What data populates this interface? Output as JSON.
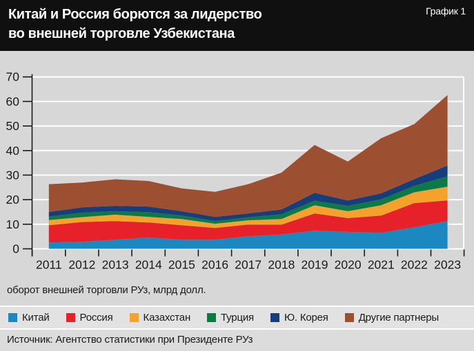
{
  "header": {
    "title_line1": "Китай и Россия борются за лидерство",
    "title_line2": "во внешней торговле Узбекистана",
    "chart_label": "График 1"
  },
  "caption": "оборот внешней торговли РУз, млрд долл.",
  "source": "Источник: Агентство статистики при Президенте РУз",
  "colors": {
    "header_bg": "#101010",
    "page_bg": "#d7d7d7",
    "gridline": "#ffffff",
    "axis": "#1a1a1a",
    "china_blue": "#1b89c0",
    "russia_red": "#e62129",
    "kazakhstan_orange": "#f5a12d",
    "turkey_green": "#0d7a45",
    "korea_navy": "#173e7c",
    "others_brown": "#9d5031"
  },
  "chart_data": {
    "type": "area",
    "stacked": true,
    "title": "Китай и Россия борются за лидерство во внешней торговле Узбекистана",
    "ylabel": "оборот внешней торговли РУз, млрд долл.",
    "ylim": [
      0,
      70
    ],
    "yticks": [
      0,
      10,
      20,
      30,
      40,
      50,
      60,
      70
    ],
    "grid": true,
    "legend_position": "bottom",
    "x": [
      2011,
      2012,
      2013,
      2014,
      2015,
      2016,
      2017,
      2018,
      2019,
      2020,
      2021,
      2022,
      2023
    ],
    "series": [
      {
        "name": "Китай",
        "color": "#1b89c0",
        "values": [
          2.6,
          2.9,
          3.7,
          4.6,
          3.7,
          3.7,
          5.1,
          5.8,
          7.4,
          6.9,
          6.5,
          8.8,
          11.3
        ]
      },
      {
        "name": "Россия",
        "color": "#e62129",
        "values": [
          7.0,
          8.0,
          7.6,
          6.1,
          5.9,
          4.8,
          4.8,
          4.0,
          7.0,
          5.6,
          7.0,
          9.8,
          8.4
        ]
      },
      {
        "name": "Казахстан",
        "color": "#f5a12d",
        "values": [
          2.1,
          2.0,
          2.6,
          2.3,
          2.5,
          1.7,
          1.7,
          2.3,
          3.3,
          2.8,
          4.2,
          4.4,
          5.6
        ]
      },
      {
        "name": "Турция",
        "color": "#0d7a45",
        "values": [
          1.4,
          1.8,
          1.4,
          1.9,
          1.4,
          1.1,
          1.2,
          1.9,
          1.9,
          2.2,
          2.4,
          2.6,
          4.2
        ]
      },
      {
        "name": "Ю. Корея",
        "color": "#173e7c",
        "values": [
          1.9,
          2.2,
          2.2,
          2.3,
          1.8,
          1.7,
          1.6,
          2.0,
          3.2,
          2.2,
          2.5,
          2.8,
          4.4
        ]
      },
      {
        "name": "Другие партнеры",
        "color": "#9d5031",
        "values": [
          11.3,
          10.1,
          10.8,
          10.4,
          9.3,
          10.2,
          11.9,
          15.0,
          19.5,
          15.8,
          22.4,
          22.4,
          28.7
        ]
      }
    ],
    "totals": [
      26.3,
      27.0,
      28.3,
      27.6,
      24.6,
      23.2,
      26.3,
      31.0,
      42.3,
      35.5,
      45.0,
      50.8,
      62.6
    ]
  }
}
